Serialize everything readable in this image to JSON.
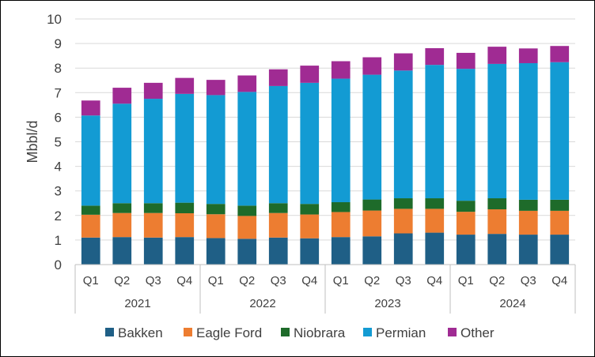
{
  "chart_data": {
    "type": "bar",
    "stacked": true,
    "title": "",
    "xlabel": "",
    "ylabel": "Mbbl/d",
    "ylim": [
      0,
      10
    ],
    "yticks": [
      "0",
      "1",
      "2",
      "3",
      "4",
      "5",
      "6",
      "7",
      "8",
      "9",
      "10"
    ],
    "grid": true,
    "legend_position": "bottom",
    "categories": [
      "Q1",
      "Q2",
      "Q3",
      "Q4",
      "Q1",
      "Q2",
      "Q3",
      "Q4",
      "Q1",
      "Q2",
      "Q3",
      "Q4",
      "Q1",
      "Q2",
      "Q3",
      "Q4"
    ],
    "groups": [
      {
        "label": "2021",
        "count": 4
      },
      {
        "label": "2022",
        "count": 4
      },
      {
        "label": "2023",
        "count": 4
      },
      {
        "label": "2024",
        "count": 4
      }
    ],
    "series": [
      {
        "name": "Bakken",
        "color": "#1F5F86",
        "values": [
          1.1,
          1.12,
          1.1,
          1.12,
          1.08,
          1.05,
          1.1,
          1.07,
          1.12,
          1.15,
          1.27,
          1.3,
          1.22,
          1.25,
          1.22,
          1.22
        ]
      },
      {
        "name": "Eagle Ford",
        "color": "#ED7D31",
        "values": [
          0.93,
          0.98,
          1.0,
          0.97,
          0.97,
          0.93,
          1.0,
          0.97,
          1.02,
          1.05,
          1.0,
          0.97,
          0.93,
          1.0,
          0.97,
          0.97
        ]
      },
      {
        "name": "Niobrara",
        "color": "#1E6B2A",
        "values": [
          0.37,
          0.4,
          0.4,
          0.43,
          0.42,
          0.42,
          0.4,
          0.43,
          0.4,
          0.45,
          0.43,
          0.43,
          0.45,
          0.45,
          0.45,
          0.45
        ]
      },
      {
        "name": "Permian",
        "color": "#139BD3",
        "values": [
          3.67,
          4.05,
          4.25,
          4.43,
          4.43,
          4.63,
          4.77,
          4.93,
          5.03,
          5.08,
          5.2,
          5.43,
          5.37,
          5.47,
          5.56,
          5.6
        ]
      },
      {
        "name": "Other",
        "color": "#A02B93",
        "values": [
          0.61,
          0.65,
          0.65,
          0.65,
          0.62,
          0.67,
          0.68,
          0.7,
          0.71,
          0.71,
          0.7,
          0.68,
          0.65,
          0.7,
          0.6,
          0.66
        ]
      }
    ]
  }
}
